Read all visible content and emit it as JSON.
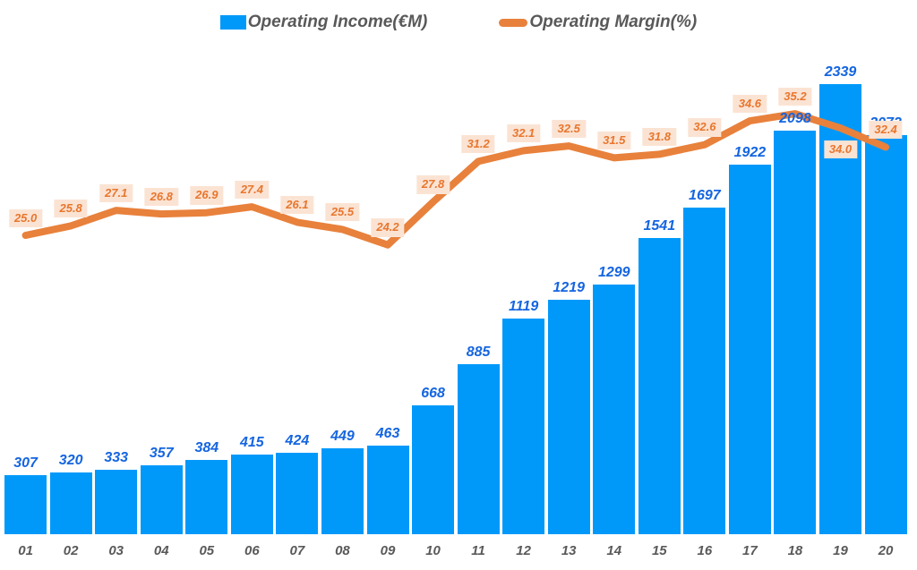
{
  "legend": {
    "income_label": "Operating Income(€M)",
    "margin_label": "Operating Margin(%)"
  },
  "colors": {
    "bar": "#0099FA",
    "bar_label": "#1565E0",
    "line": "#E8813C",
    "margin_label_text": "#E8762E",
    "margin_label_bg": "#FBE3D3",
    "axis_text": "#595959",
    "legend_text": "#595959"
  },
  "chart_data": {
    "type": "combo",
    "categories": [
      "01",
      "02",
      "03",
      "04",
      "05",
      "06",
      "07",
      "08",
      "09",
      "10",
      "11",
      "12",
      "13",
      "14",
      "15",
      "16",
      "17",
      "18",
      "19",
      "20"
    ],
    "series": [
      {
        "name": "Operating Income(€M)",
        "type": "bar",
        "values": [
          307,
          320,
          333,
          357,
          384,
          415,
          424,
          449,
          463,
          668,
          885,
          1119,
          1219,
          1299,
          1541,
          1697,
          1922,
          2098,
          2339,
          2073
        ]
      },
      {
        "name": "Operating Margin(%)",
        "type": "line",
        "values": [
          25.0,
          25.8,
          27.1,
          26.8,
          26.9,
          27.4,
          26.1,
          25.5,
          24.2,
          27.8,
          31.2,
          32.1,
          32.5,
          31.5,
          31.8,
          32.6,
          34.6,
          35.2,
          34.0,
          32.4
        ],
        "label_position": [
          "above",
          "above",
          "above",
          "above",
          "above",
          "above",
          "above",
          "above",
          "above",
          "above",
          "above",
          "above",
          "above",
          "above",
          "above",
          "above",
          "above",
          "above",
          "below",
          "above"
        ]
      }
    ],
    "title": "",
    "xlabel": "",
    "ylabel": "",
    "bar_value_labels_shown": true,
    "line_value_labels_shown": true,
    "value_label_decimals_line": 1,
    "grid": false,
    "legend_position": "top-center",
    "bar_axis_implied_range": [
      0,
      2600
    ],
    "line_axis_implied_range": [
      0,
      44
    ]
  }
}
